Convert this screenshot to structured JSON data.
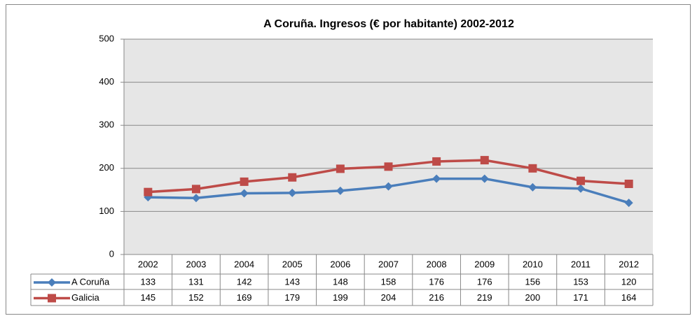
{
  "chart_data": {
    "type": "line",
    "title": "A Coruña. Ingresos (€ por habitante) 2002-2012",
    "categories": [
      "2002",
      "2003",
      "2004",
      "2005",
      "2006",
      "2007",
      "2008",
      "2009",
      "2010",
      "2011",
      "2012"
    ],
    "series": [
      {
        "name": "A Coruña",
        "color": "#4a7ebb",
        "marker": "diamond",
        "values": [
          133,
          131,
          142,
          143,
          148,
          158,
          176,
          176,
          156,
          153,
          120
        ]
      },
      {
        "name": "Galicia",
        "color": "#be4b48",
        "marker": "square",
        "values": [
          145,
          152,
          169,
          179,
          199,
          204,
          216,
          219,
          200,
          171,
          164
        ]
      }
    ],
    "ylim": [
      0,
      500
    ],
    "yticks": [
      0,
      100,
      200,
      300,
      400,
      500
    ],
    "grid": true,
    "data_table": true
  }
}
